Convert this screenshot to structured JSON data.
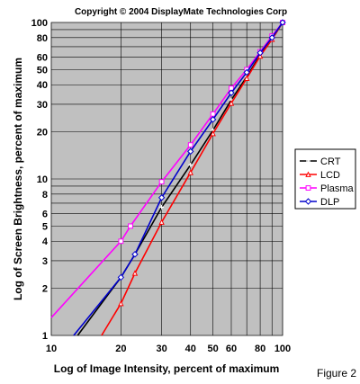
{
  "chart_data": {
    "type": "line",
    "title": "Copyright © 2004 DisplayMate Technologies Corp",
    "xlabel": "Log of Image Intensity, percent of maximum",
    "ylabel": "Log of Screen Brightness, percent of maximum",
    "figure_label": "Figure 2",
    "xscale": "log",
    "yscale": "log",
    "xlim": [
      10,
      100
    ],
    "ylim": [
      1,
      100
    ],
    "x_ticks": [
      10,
      20,
      30,
      40,
      50,
      60,
      80,
      100
    ],
    "y_ticks": [
      1,
      2,
      3,
      4,
      5,
      6,
      8,
      10,
      20,
      30,
      40,
      50,
      60,
      80,
      100
    ],
    "grid": true,
    "legend_position": "right",
    "plot_background": "#c0c0c0",
    "series": [
      {
        "name": "CRT",
        "color": "#000000",
        "marker": "plus",
        "points": [
          [
            13,
            1
          ],
          [
            20,
            2.35
          ],
          [
            23,
            3.3
          ],
          [
            30,
            6.6
          ],
          [
            40,
            12.3
          ],
          [
            50,
            20.5
          ],
          [
            60,
            32
          ],
          [
            70,
            45
          ],
          [
            80,
            62
          ],
          [
            90,
            78
          ],
          [
            100,
            100
          ]
        ]
      },
      {
        "name": "LCD",
        "color": "#ff0000",
        "marker": "triangle",
        "points": [
          [
            16.5,
            1
          ],
          [
            20,
            1.6
          ],
          [
            23,
            2.5
          ],
          [
            30,
            5.3
          ],
          [
            40,
            11
          ],
          [
            50,
            19.5
          ],
          [
            60,
            30.5
          ],
          [
            70,
            44
          ],
          [
            80,
            61
          ],
          [
            90,
            78
          ],
          [
            100,
            100
          ]
        ]
      },
      {
        "name": "Plasma",
        "color": "#ff00ff",
        "marker": "square",
        "points": [
          [
            10,
            1.3
          ],
          [
            20,
            4
          ],
          [
            22,
            5
          ],
          [
            30,
            9.6
          ],
          [
            40,
            16.5
          ],
          [
            50,
            26
          ],
          [
            60,
            38
          ],
          [
            70,
            50
          ],
          [
            80,
            65
          ],
          [
            90,
            82
          ],
          [
            100,
            100
          ]
        ]
      },
      {
        "name": "DLP",
        "color": "#0000cc",
        "marker": "diamond",
        "points": [
          [
            12.5,
            1
          ],
          [
            20,
            2.35
          ],
          [
            23,
            3.3
          ],
          [
            30,
            7.6
          ],
          [
            40,
            15
          ],
          [
            50,
            24
          ],
          [
            60,
            35.5
          ],
          [
            70,
            48
          ],
          [
            80,
            64
          ],
          [
            90,
            80
          ],
          [
            100,
            100
          ]
        ]
      }
    ]
  }
}
